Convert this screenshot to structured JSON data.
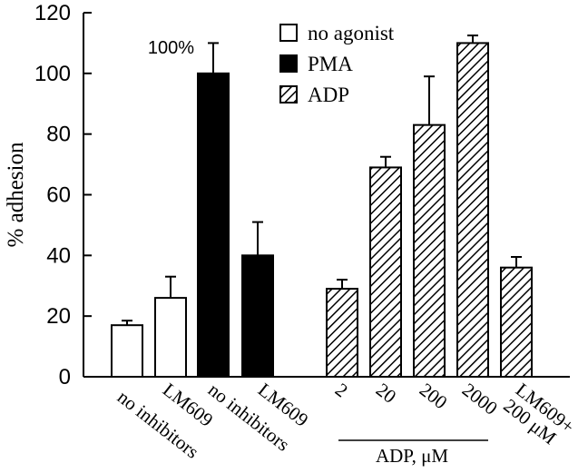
{
  "chart_data": {
    "type": "bar",
    "ylabel": "% adhesion",
    "ylim": [
      0,
      120
    ],
    "yticks": [
      0,
      20,
      40,
      60,
      80,
      100,
      120
    ],
    "grid": false,
    "legend_position": "top-right",
    "legend": [
      {
        "key": "none",
        "label": "no agonist",
        "style": "open"
      },
      {
        "key": "pma",
        "label": "PMA",
        "style": "solid"
      },
      {
        "key": "adp",
        "label": "ADP",
        "style": "hatched"
      }
    ],
    "bars": [
      {
        "label": "no inhibitors",
        "group": "none",
        "value": 17,
        "error": 1.5
      },
      {
        "label": "LM609",
        "group": "none",
        "value": 26,
        "error": 7
      },
      {
        "label": "no inhibitors",
        "group": "pma",
        "value": 100,
        "error": 10,
        "annotation": "100%"
      },
      {
        "label": "LM609",
        "group": "pma",
        "value": 40,
        "error": 11
      },
      {
        "label": "2",
        "group": "adp",
        "value": 29,
        "error": 3
      },
      {
        "label": "20",
        "group": "adp",
        "value": 69,
        "error": 3.5
      },
      {
        "label": "200",
        "group": "adp",
        "value": 83,
        "error": 16
      },
      {
        "label": "2000",
        "group": "adp",
        "value": 110,
        "error": 2.5
      },
      {
        "label": "LM609+\n200 μM",
        "group": "adp",
        "value": 36,
        "error": 3.5
      }
    ],
    "bracket_label": "ADP, μM"
  },
  "colors": {
    "axis": "#000000",
    "open_fill": "#ffffff",
    "solid_fill": "#000000",
    "hatch": "#000000"
  }
}
